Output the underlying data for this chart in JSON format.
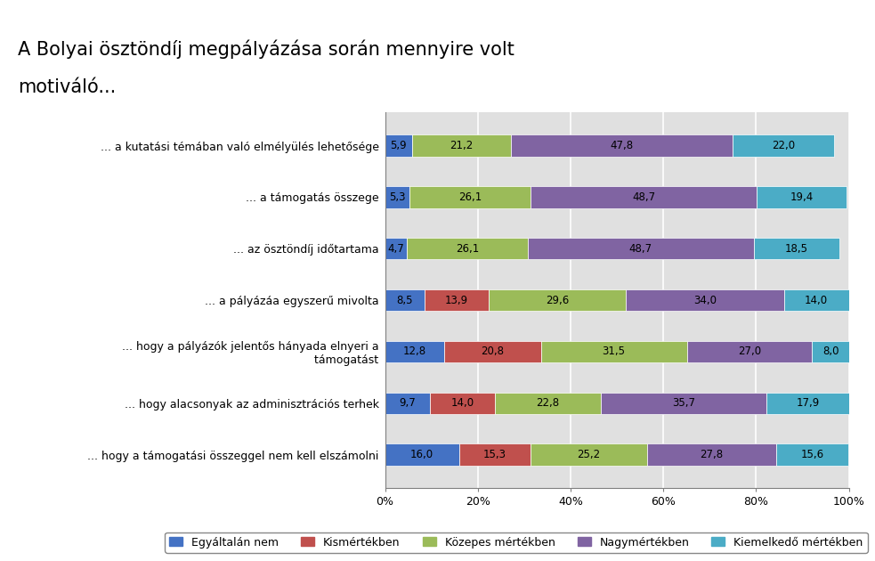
{
  "title_line1": "A Bolyai ösztöndíj megpályázása során mennyire volt",
  "title_line2": "motiváló...",
  "categories": [
    "... a kutatási témában való elmélyülés lehetősége",
    "... a támogatás összege",
    "... az ösztöndíj időtartama",
    "... a pályázáa egyszerű mivolta",
    "... hogy a pályázók jelentős hányada elnyeri a\n      támogatást",
    "... hogy alacsonyak az adminisztrációs terhek",
    "... hogy a támogatási összeggel nem kell elszámolni"
  ],
  "series": {
    "Egyáltalán nem": [
      5.9,
      5.3,
      4.7,
      8.5,
      12.8,
      9.7,
      16.0
    ],
    "Kismértékben": [
      0.0,
      0.0,
      0.0,
      13.9,
      20.8,
      14.0,
      15.3
    ],
    "Közepes mértékben": [
      21.2,
      26.1,
      26.1,
      29.6,
      31.5,
      22.8,
      25.2
    ],
    "Nagymértékben": [
      47.8,
      48.7,
      48.7,
      34.0,
      27.0,
      35.7,
      27.8
    ],
    "Kiemelkedő mértékben": [
      22.0,
      19.4,
      18.5,
      14.0,
      8.0,
      17.9,
      15.6
    ]
  },
  "label_values": {
    "Egyáltalán nem": [
      "5,9",
      "5,3",
      "4,7",
      "8,5",
      "12,8",
      "9,7",
      "16,0"
    ],
    "Kismértékben": [
      "",
      "",
      "",
      "13,9",
      "20,8",
      "14,0",
      "15,3"
    ],
    "Közepes mértékben": [
      "21,2",
      "26,1",
      "26,1",
      "29,6",
      "31,5",
      "22,8",
      "25,2"
    ],
    "Nagymértékben": [
      "47,8",
      "48,7",
      "48,7",
      "34,0",
      "27,0",
      "35,7",
      "27,8"
    ],
    "Kiemelkedő mértékben": [
      "22,0",
      "19,4",
      "18,5",
      "14,0",
      "8,0",
      "17,9",
      "15,6"
    ]
  },
  "colors": {
    "Egyáltalán nem": "#4472c4",
    "Kismértékben": "#c0504d",
    "Közepes mértékben": "#9bbb59",
    "Nagymértékben": "#8064a2",
    "Kiemelkedő mértékben": "#4bacc6"
  },
  "xlim": [
    0,
    100
  ],
  "xticks": [
    0,
    20,
    40,
    60,
    80,
    100
  ],
  "xtick_labels": [
    "0%",
    "20%",
    "40%",
    "60%",
    "80%",
    "100%"
  ],
  "background_color": "#e0e0e0",
  "bar_height": 0.42,
  "title_fontsize": 15,
  "label_fontsize": 8.5,
  "tick_fontsize": 9,
  "legend_fontsize": 9
}
